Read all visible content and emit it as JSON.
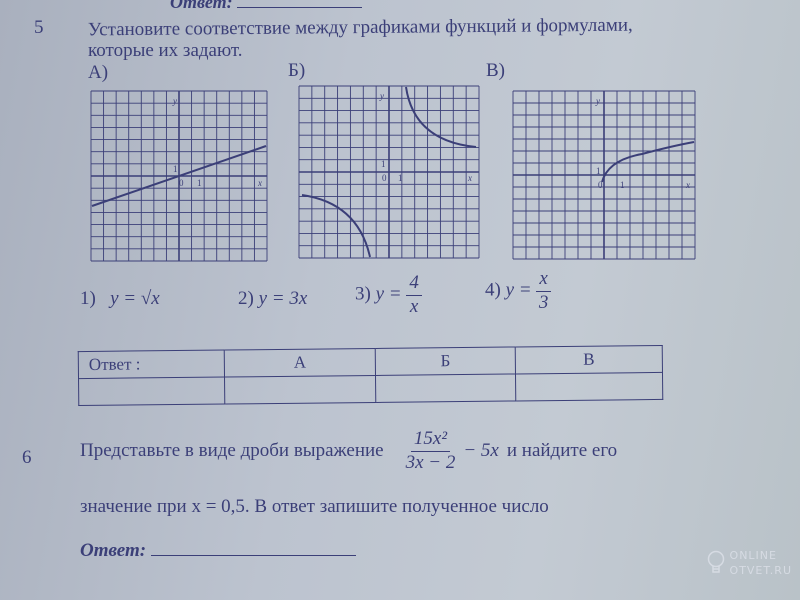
{
  "top_answer_label": "Ответ:",
  "task5": {
    "number": "5",
    "line1": "Установите соответствие между графиками функций и формулами,",
    "line2": "которые их задают.",
    "graph_labels": [
      "А)",
      "Б)",
      "В)"
    ],
    "axis": {
      "y": "y",
      "x": "x",
      "zero": "0",
      "one": "1"
    },
    "options": [
      {
        "num": "1)",
        "formula": "y = √x"
      },
      {
        "num": "2)",
        "formula": "y = 3x"
      },
      {
        "num": "3)",
        "lhs": "y =",
        "numerator": "4",
        "denominator": "x"
      },
      {
        "num": "4)",
        "lhs": "y =",
        "numerator": "x",
        "denominator": "3"
      }
    ],
    "table": {
      "header": "Ответ :",
      "columns": [
        "А",
        "Б",
        "В"
      ]
    }
  },
  "task6": {
    "number": "6",
    "text_before": "Представьте в виде дроби выражение",
    "numerator": "15x²",
    "denominator": "3x − 2",
    "text_mid": "− 5x",
    "text_after": "и найдите его",
    "line2": "значение при x = 0,5.  В ответ  запишите полученное число",
    "answer_label": "Ответ:"
  },
  "watermark": {
    "line1": "ONLINE",
    "line2": "OTVET.RU",
    "icon": "lightbulb-icon"
  }
}
